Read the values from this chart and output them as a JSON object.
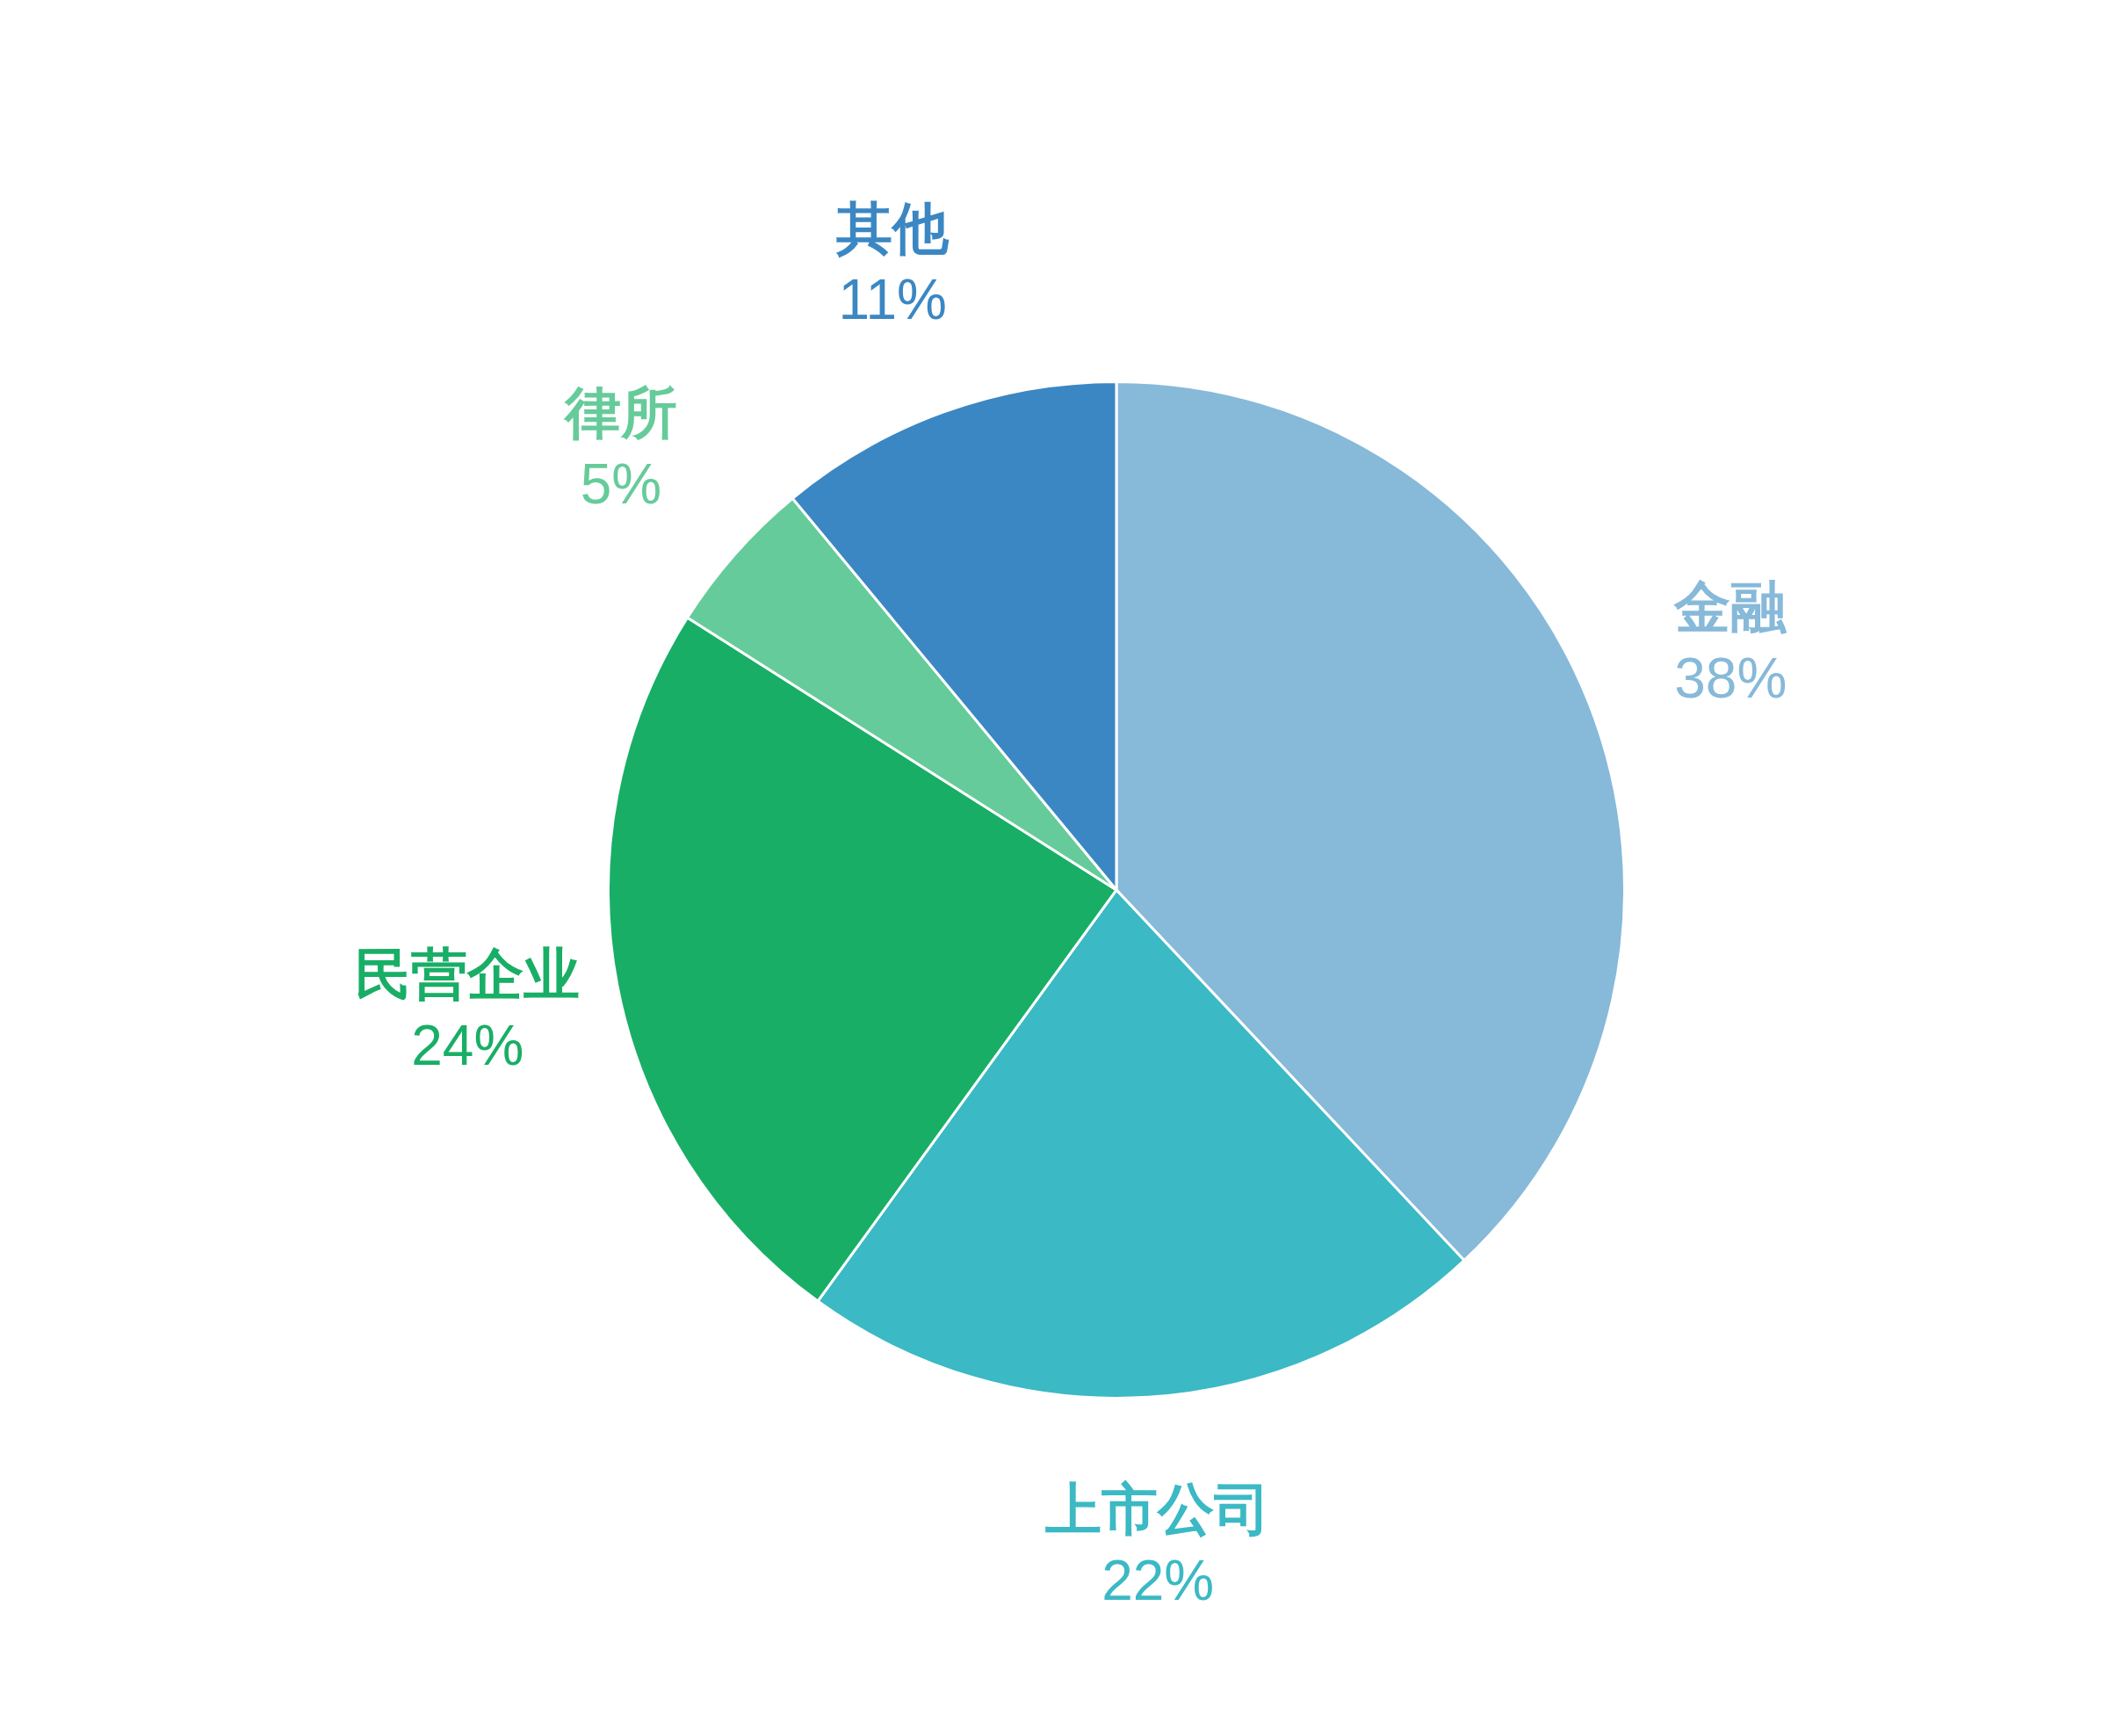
{
  "chart_data": {
    "type": "pie",
    "categories": [
      "金融",
      "上市公司",
      "民营企业",
      "律所",
      "其他"
    ],
    "values": [
      38,
      22,
      24,
      5,
      11
    ],
    "colors": [
      "#87b9d9",
      "#3bb9c4",
      "#19ae66",
      "#66cb9a",
      "#3b87c3"
    ],
    "value_labels": [
      "38%",
      "22%",
      "24%",
      "5%",
      "11%"
    ],
    "legend": false
  }
}
